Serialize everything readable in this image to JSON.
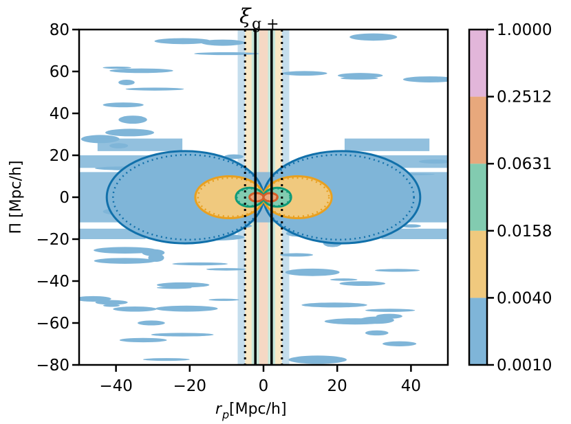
{
  "chart_data": {
    "type": "contour",
    "title": "ξ",
    "title_subscript": "g +",
    "xlabel": "r",
    "xlabel_subscript": "p",
    "xlabel_unit": " [Mpc/h]",
    "ylabel": "Π [Mpc/h]",
    "xlim": [
      -50,
      50
    ],
    "ylim": [
      -80,
      80
    ],
    "xticks": [
      -40,
      -20,
      0,
      20,
      40
    ],
    "xtick_labels": [
      "−40",
      "−20",
      "0",
      "20",
      "40"
    ],
    "yticks": [
      -80,
      -60,
      -40,
      -20,
      0,
      20,
      40,
      60,
      80
    ],
    "ytick_labels": [
      "−80",
      "−60",
      "−40",
      "−20",
      "0",
      "20",
      "40",
      "60",
      "80"
    ],
    "colorbar": {
      "levels": [
        "0.0010",
        "0.0040",
        "0.0158",
        "0.0631",
        "0.2512",
        "1.0000"
      ],
      "colors": [
        "#7fb5d8",
        "#f0c97e",
        "#82cbb0",
        "#e8a87c",
        "#e2b6da"
      ]
    },
    "contour_lines": [
      {
        "level": "0.0010",
        "color": "#1170aa",
        "rx": 42.5,
        "ry": 22
      },
      {
        "level": "0.0040",
        "color": "#e8a020",
        "rx": 18.5,
        "ry": 10
      },
      {
        "level": "0.0158",
        "color": "#109a78",
        "rx": 7.5,
        "ry": 4.5
      },
      {
        "level": "0.0631",
        "color": "#d55e28",
        "rx": 3.8,
        "ry": 2
      }
    ],
    "vertical_lines": [
      {
        "x": -5,
        "style": "dotted"
      },
      {
        "x": 5,
        "style": "dotted"
      },
      {
        "x": -2.2,
        "style": "solid"
      },
      {
        "x": 2.2,
        "style": "solid"
      }
    ]
  }
}
